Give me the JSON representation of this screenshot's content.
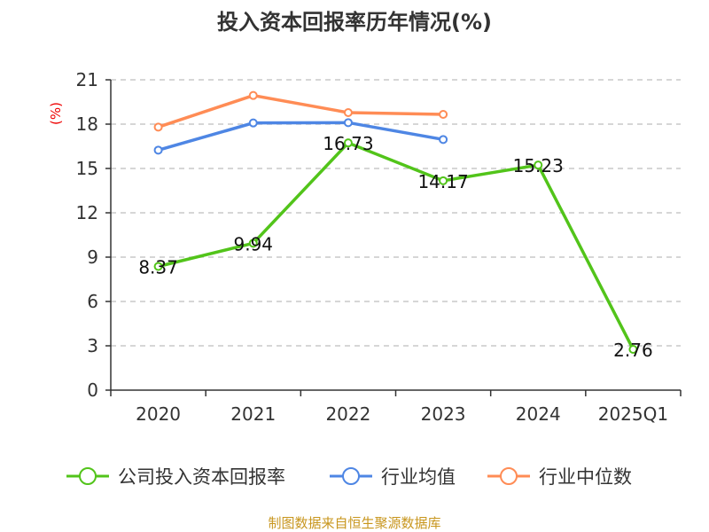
{
  "chart_data": {
    "type": "line",
    "title": "投入资本回报率历年情况(%)",
    "ylabel": "(%)",
    "xlabel": "",
    "categories": [
      "2020",
      "2021",
      "2022",
      "2023",
      "2024",
      "2025Q1"
    ],
    "ylim": [
      0,
      21
    ],
    "yticks": [
      0,
      3,
      6,
      9,
      12,
      15,
      18,
      21
    ],
    "grid": true,
    "legend_placement": "bottom",
    "series": [
      {
        "name": "公司投入资本回报率",
        "color": "#52c41a",
        "values": [
          8.37,
          9.94,
          16.73,
          14.17,
          15.23,
          2.76
        ],
        "labels": [
          "8.37",
          "9.94",
          "16.73",
          "14.17",
          "15.23",
          "2.76"
        ]
      },
      {
        "name": "行业均值",
        "color": "#4e86e4",
        "values": [
          16.24,
          18.08,
          18.1,
          16.96,
          null,
          null
        ]
      },
      {
        "name": "行业中位数",
        "color": "#ff8c55",
        "values": [
          17.8,
          19.94,
          18.78,
          18.66,
          null,
          null
        ]
      }
    ],
    "source": "制图数据来自恒生聚源数据库"
  }
}
